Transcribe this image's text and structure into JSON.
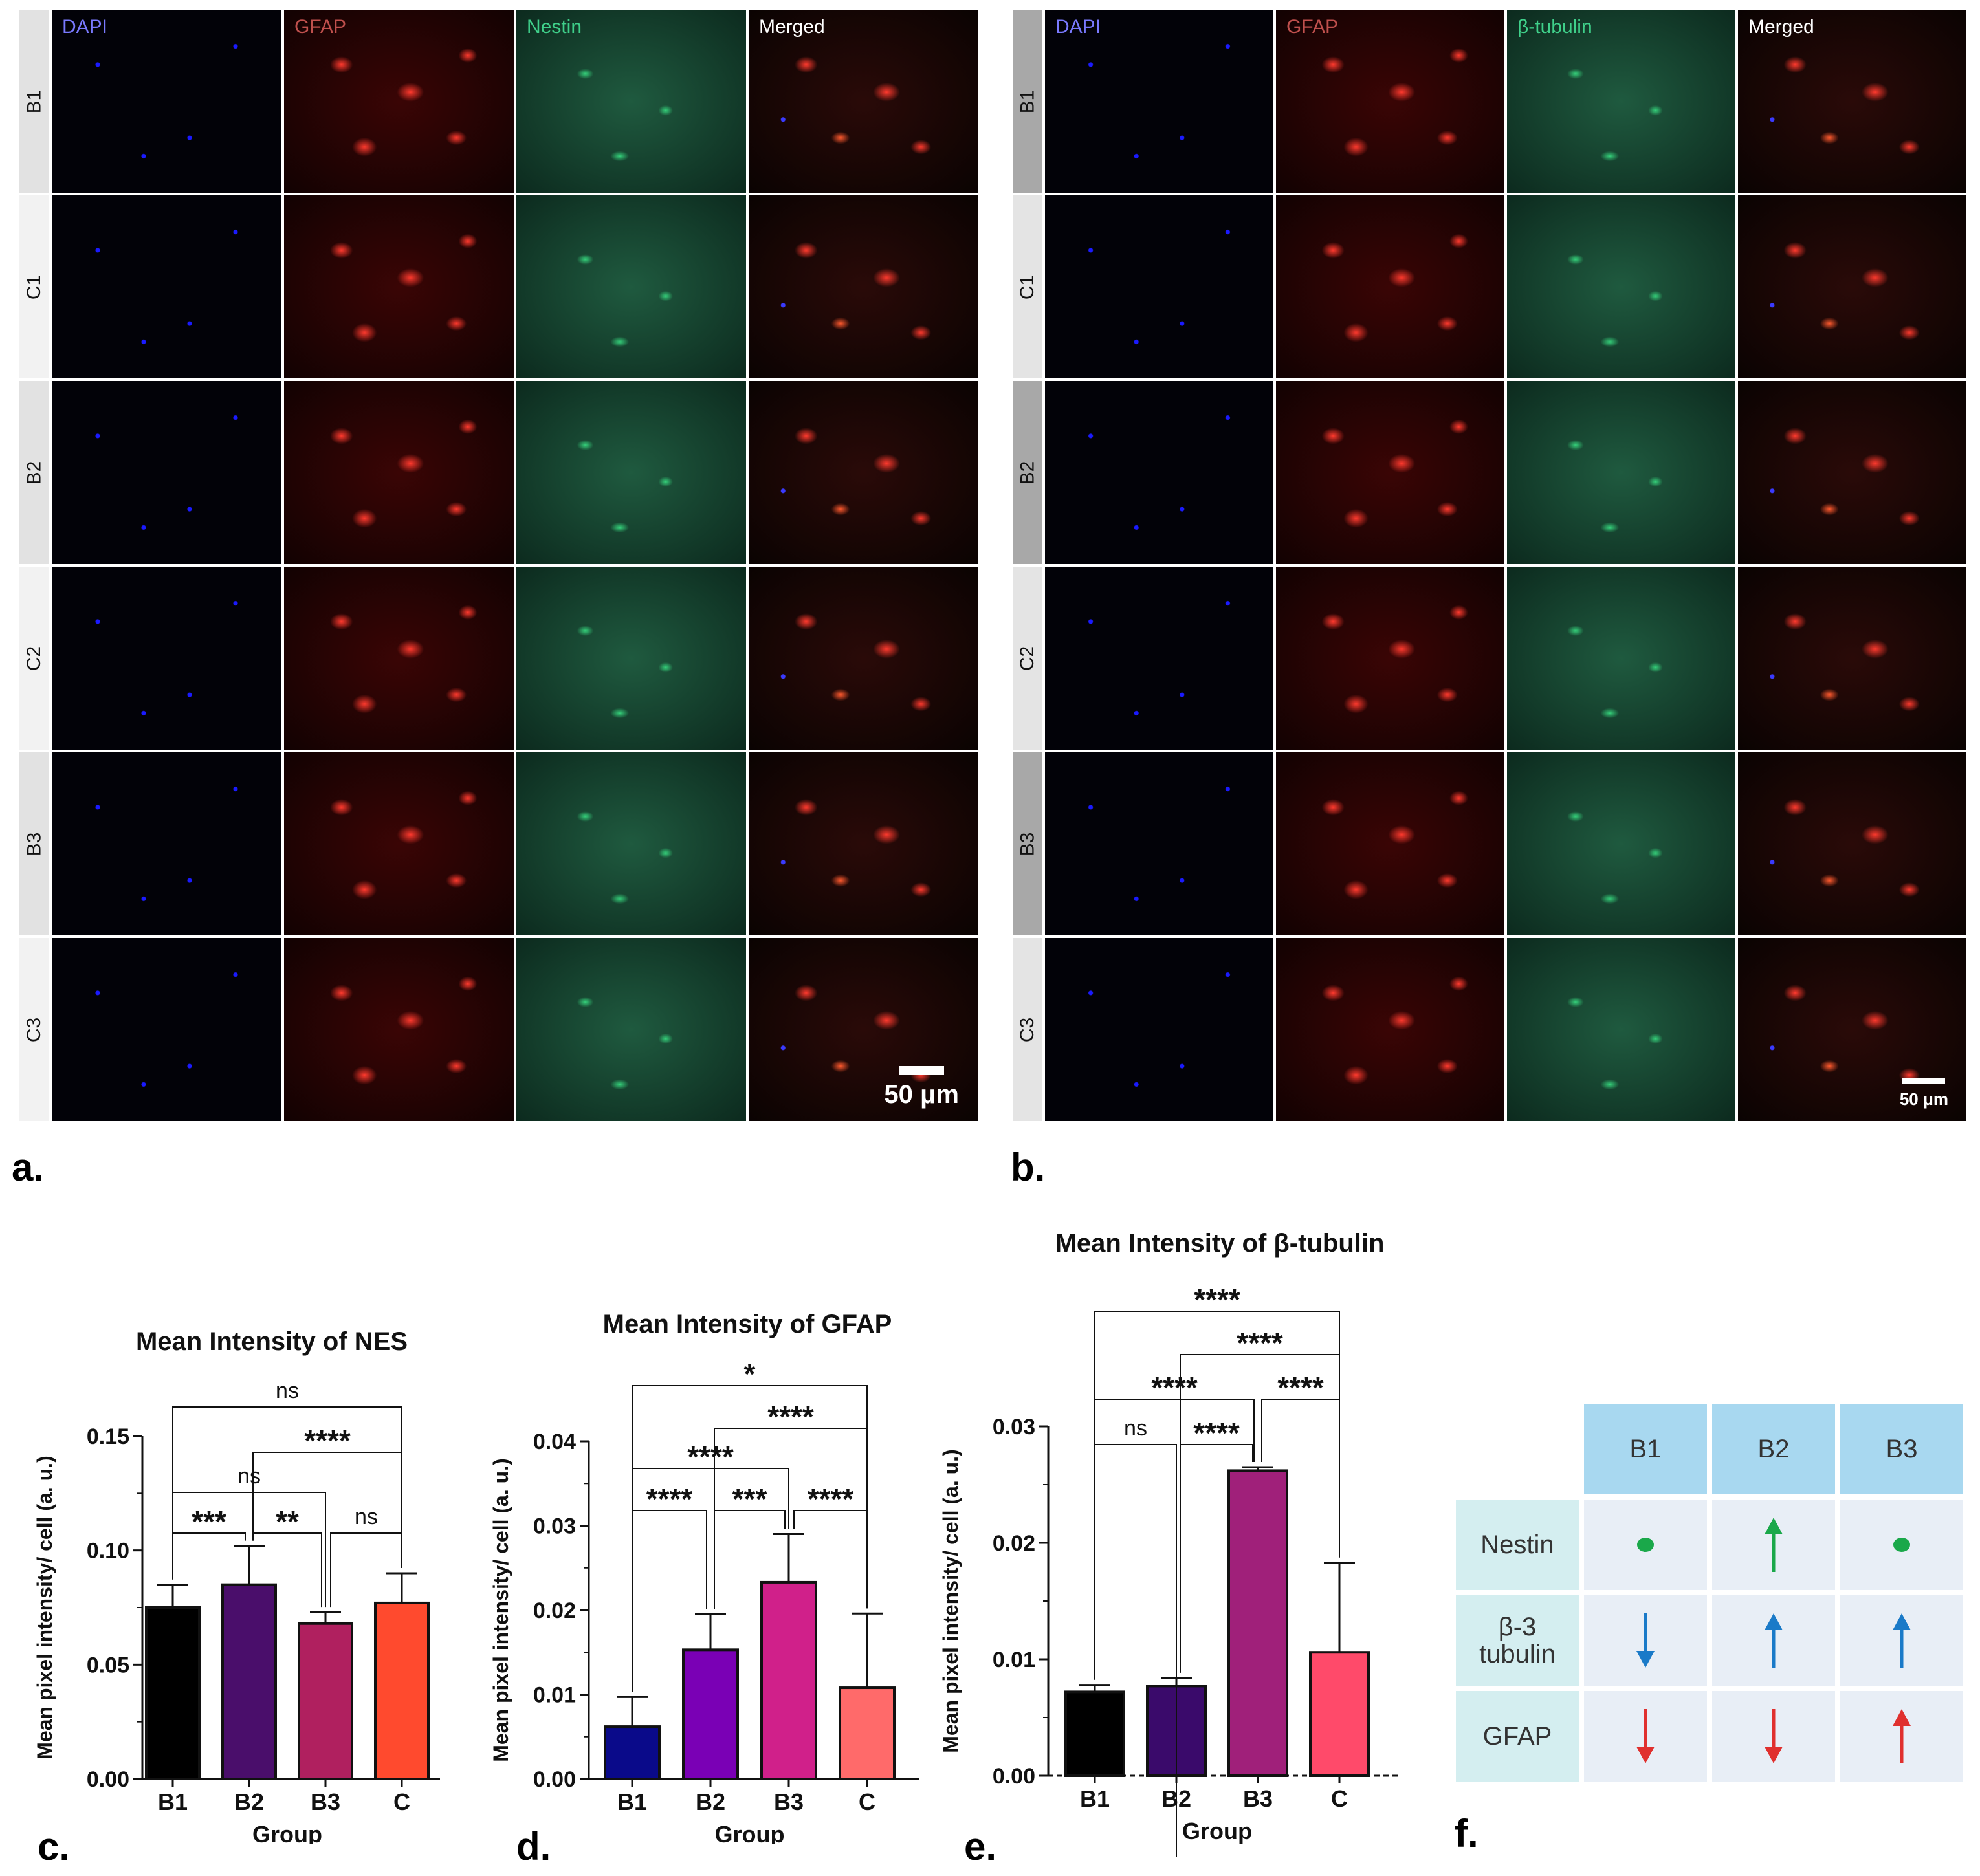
{
  "panel_letters": {
    "a": "a.",
    "b": "b.",
    "c": "c.",
    "d": "d.",
    "e": "e.",
    "f": "f."
  },
  "micrographs": {
    "a": {
      "channels": [
        "DAPI",
        "GFAP",
        "Nestin",
        "Merged"
      ],
      "channel_colors": [
        "#7a7aff",
        "#c0504d",
        "#3fd08a",
        "#ffffff"
      ],
      "rows": [
        "B1",
        "C1",
        "B2",
        "C2",
        "B3",
        "C3"
      ],
      "scalebar": "50 μm"
    },
    "b": {
      "channels": [
        "DAPI",
        "GFAP",
        "β-tubulin",
        "Merged"
      ],
      "channel_colors": [
        "#7a7aff",
        "#c0504d",
        "#3fd08a",
        "#ffffff"
      ],
      "rows": [
        "B1",
        "C1",
        "B2",
        "C2",
        "B3",
        "C3"
      ],
      "scalebar": "50 μm"
    }
  },
  "chart_data": [
    {
      "type": "bar",
      "panel": "c",
      "title": "Mean Intensity of NES",
      "xlabel": "Group",
      "ylabel": "Mean pixel intensity/ cell (a. u.)",
      "categories": [
        "B1",
        "B2",
        "B3",
        "C"
      ],
      "values": [
        0.075,
        0.085,
        0.068,
        0.077
      ],
      "errors": [
        0.01,
        0.017,
        0.005,
        0.013
      ],
      "colors": [
        "#000000",
        "#4a0e6b",
        "#b0205f",
        "#ff4a2e"
      ],
      "ylim": [
        0,
        0.15
      ],
      "yticks": [
        "0.00",
        "0.05",
        "0.10",
        "0.15"
      ],
      "significance": [
        {
          "pair": [
            "B1",
            "C"
          ],
          "label": "ns"
        },
        {
          "pair": [
            "B2",
            "C"
          ],
          "label": "****"
        },
        {
          "pair": [
            "B1",
            "B3"
          ],
          "label": "ns"
        },
        {
          "pair": [
            "B1",
            "B2"
          ],
          "label": "***"
        },
        {
          "pair": [
            "B2",
            "B3"
          ],
          "label": "**"
        },
        {
          "pair": [
            "B3",
            "C"
          ],
          "label": "ns"
        }
      ]
    },
    {
      "type": "bar",
      "panel": "d",
      "title": "Mean Intensity of GFAP",
      "xlabel": "Group",
      "ylabel": "Mean pixel intensity/ cell (a. u.)",
      "categories": [
        "B1",
        "B2",
        "B3",
        "C"
      ],
      "values": [
        0.0062,
        0.0153,
        0.0233,
        0.0108
      ],
      "errors": [
        0.0035,
        0.0042,
        0.0057,
        0.0088
      ],
      "colors": [
        "#0a0a8a",
        "#7a00b5",
        "#d0208a",
        "#ff6a6a"
      ],
      "ylim": [
        0,
        0.04
      ],
      "yticks": [
        "0.00",
        "0.01",
        "0.02",
        "0.03",
        "0.04"
      ],
      "significance": [
        {
          "pair": [
            "B1",
            "C"
          ],
          "label": "*"
        },
        {
          "pair": [
            "B2",
            "C"
          ],
          "label": "****"
        },
        {
          "pair": [
            "B1",
            "B3"
          ],
          "label": "****"
        },
        {
          "pair": [
            "B1",
            "B2"
          ],
          "label": "****"
        },
        {
          "pair": [
            "B2",
            "B3"
          ],
          "label": "***"
        },
        {
          "pair": [
            "B3",
            "C"
          ],
          "label": "****"
        }
      ]
    },
    {
      "type": "bar",
      "panel": "e",
      "title": "Mean Intensity of β-tubulin",
      "xlabel": "Group",
      "ylabel": "Mean pixel intensity/ cell (a. u.)",
      "categories": [
        "B1",
        "B2",
        "B3",
        "C"
      ],
      "values": [
        0.0072,
        0.0077,
        0.0262,
        0.0106
      ],
      "errors": [
        0.0006,
        0.0007,
        0.0003,
        0.0077
      ],
      "colors": [
        "#000000",
        "#3a0a6b",
        "#a0207a",
        "#ff4a6a"
      ],
      "ylim": [
        0,
        0.03
      ],
      "yticks": [
        "0.00",
        "0.01",
        "0.02",
        "0.03"
      ],
      "significance": [
        {
          "pair": [
            "B1",
            "C"
          ],
          "label": "****"
        },
        {
          "pair": [
            "B2",
            "C"
          ],
          "label": "****"
        },
        {
          "pair": [
            "B1",
            "B3"
          ],
          "label": "****"
        },
        {
          "pair": [
            "B3",
            "C"
          ],
          "label": "****"
        },
        {
          "pair": [
            "B1",
            "B2"
          ],
          "label": "ns"
        },
        {
          "pair": [
            "B2",
            "B3"
          ],
          "label": "****"
        }
      ]
    }
  ],
  "summary_table": {
    "columns": [
      "B1",
      "B2",
      "B3"
    ],
    "rows": [
      {
        "label": "Nestin",
        "symbols": [
          "dot",
          "up",
          "dot"
        ],
        "color": "#1aa84a"
      },
      {
        "label": "β-3\ntubulin",
        "symbols": [
          "down",
          "up",
          "up"
        ],
        "color": "#1a7ac8"
      },
      {
        "label": "GFAP",
        "symbols": [
          "down",
          "down",
          "up"
        ],
        "color": "#e0302e"
      }
    ],
    "header_color": "#a8d8f0",
    "label_color": "#d4eef0",
    "cell_color": "#e8eef6"
  }
}
